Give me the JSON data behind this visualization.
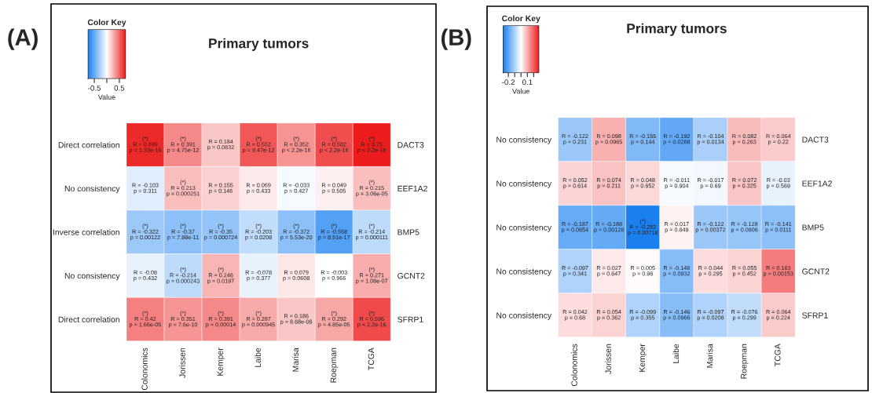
{
  "chart_data": [
    {
      "type": "heatmap",
      "title": "Primary tumors",
      "clabel": "Value",
      "annotations": [
        "(A)",
        "Color Key"
      ],
      "categories": [
        "Colonomics",
        "Jorissen",
        "Kemper",
        "Laibe",
        "Marisa",
        "Roepman",
        "TCGA"
      ],
      "y_categories": [
        "Direct correlation",
        "No consistency",
        "Inverse correlation",
        "No consistency",
        "Direct correlation"
      ],
      "y2_categories": [
        "DACT3",
        "EEF1A2",
        "BMP5",
        "GCNT2",
        "SFRP1"
      ],
      "cells": [
        [
          0.699,
          0.391,
          0.184,
          0.552,
          0.352,
          0.582,
          0.75
        ],
        [
          -0.103,
          0.213,
          0.155,
          0.069,
          -0.033,
          0.049,
          0.215
        ],
        [
          -0.322,
          -0.37,
          -0.35,
          -0.203,
          -0.372,
          -0.558,
          -0.214
        ],
        [
          -0.08,
          -0.214,
          0.246,
          -0.078,
          0.079,
          -0.003,
          0.271
        ],
        [
          0.42,
          0.351,
          0.391,
          0.287,
          0.186,
          0.292,
          0.596
        ]
      ],
      "cell_labels": [
        [
          "(*)\nR = 0.699\np = 1.33e-15",
          "(*)\nR = 0.391\np = 4.75e-12",
          "R = 0.184\np = 0.0832",
          "(*)\nR = 0.552\np = 9.47e-12",
          "(*)\nR = 0.352\np < 2.2e-16",
          "(*)\nR = 0.582\np < 2.2e-16",
          "(*)\nR = 0.75\np < 2.2e-16"
        ],
        [
          "R = -0.103\np = 0.311",
          "(*)\nR = 0.213\np = 0.000251",
          "R = 0.155\np = 0.146",
          "R = 0.069\np = 0.433",
          "R = -0.033\np = 0.427",
          "R = 0.049\np = 0.505",
          "(*)\nR = 0.215\np = 3.06e-05"
        ],
        [
          "(*)\nR = -0.322\np = 0.00122",
          "(*)\nR = -0.37\np = 7.88e-11",
          "(*)\nR = -0.35\np = 0.000724",
          "(*)\nR = -0.203\np = 0.0208",
          "(*)\nR = -0.372\np = 5.53e-20",
          "(*)\nR = -0.558\np = 8.51e-17",
          "(*)\nR = -0.214\np = 0.000111"
        ],
        [
          "R = -0.08\np = 0.432",
          "(*)\nR = -0.214\np = 0.000243",
          "(*)\nR = 0.246\np = 0.0197",
          "R = -0.078\np = 0.377",
          "R = 0.079\np = 0.0608",
          "R = -0.003\np = 0.966",
          "(*)\nR = 0.271\np = 1.08e-07"
        ],
        [
          "(*)\nR = 0.42\np = 1.66e-05",
          "(*)\nR = 0.351\np = 7.6e-10",
          "(*)\nR = 0.391\np = 0.00014",
          "(*)\nR = 0.287\np = 0.000945",
          "R = 0.186\np = 8.68e-06",
          "(*)\nR = 0.292\np = 4.85e-05",
          "(*)\nR = 0.596\np < 2.2e-16"
        ]
      ],
      "clim": [
        -0.75,
        0.75
      ],
      "cticks": [
        -0.5,
        {
          "value": 0,
          "label": null
        },
        0.5
      ]
    },
    {
      "type": "heatmap",
      "title": "Primary tumors",
      "clabel": "Value",
      "annotations": [
        "(B)",
        "Color Key"
      ],
      "categories": [
        "Colonomics",
        "Jorissen",
        "Kemper",
        "Laibe",
        "Marisa",
        "Roepman",
        "TCGA"
      ],
      "y_categories": [
        "No consistency",
        "No consistency",
        "No consistency",
        "No consistency",
        "No consistency"
      ],
      "y2_categories": [
        "DACT3",
        "EEF1A2",
        "BMP5",
        "GCNT2",
        "SFRP1"
      ],
      "cells": [
        [
          -0.122,
          0.098,
          -0.155,
          -0.192,
          -0.104,
          0.082,
          0.064
        ],
        [
          0.052,
          0.074,
          0.048,
          -0.011,
          -0.017,
          0.072,
          -0.03
        ],
        [
          -0.187,
          -0.188,
          -0.282,
          0.017,
          -0.122,
          -0.128,
          -0.141
        ],
        [
          -0.097,
          0.027,
          0.005,
          -0.148,
          0.044,
          0.055,
          0.163
        ],
        [
          0.042,
          0.054,
          -0.099,
          -0.146,
          -0.097,
          -0.076,
          0.064
        ]
      ],
      "cell_labels": [
        [
          "R = -0.122\np = 0.231",
          "R = 0.098\np = 0.0965",
          "R = -0.155\np = 0.144",
          "R = -0.192\np = 0.0288",
          "R = -0.104\np = 0.0134",
          "R = 0.082\np = 0.263",
          "R = 0.064\np = 0.22"
        ],
        [
          "R = 0.052\np = 0.614",
          "R = 0.074\np = 0.211",
          "R = 0.048\np = 0.652",
          "R = -0.011\np = 0.904",
          "R = -0.017\np = 0.69",
          "R = 0.072\np = 0.325",
          "R = -0.03\np = 0.569"
        ],
        [
          "R = -0.187\np = 0.0654",
          "R = -0.188\np = 0.00128",
          "(*)\nR = -0.282\np = 0.00718",
          "R = 0.017\np = 0.849",
          "R = -0.122\np = 0.00372",
          "R = -0.128\np = 0.0806",
          "R = -0.141\np = 0.0111"
        ],
        [
          "R = -0.097\np = 0.341",
          "R = 0.027\np = 0.647",
          "R = 0.005\np = 0.96",
          "R = -0.148\np = 0.0932",
          "R = 0.044\np = 0.295",
          "R = 0.055\np = 0.452",
          "R = 0.163\np = 0.00153"
        ],
        [
          "R = 0.042\np = 0.68",
          "R = 0.054\np = 0.362",
          "R = -0.099\np = 0.355",
          "R = -0.146\np = 0.0966",
          "R = -0.097\np = 0.0208",
          "R = -0.076\np = 0.299",
          "R = 0.064\np = 0.224"
        ]
      ],
      "clim": [
        -0.282,
        0.282
      ],
      "cticks": [
        -0.2,
        {
          "value": -0.1,
          "label": null
        },
        {
          "value": 0,
          "label": null
        },
        0.1,
        {
          "value": 0.2,
          "label": null
        }
      ]
    }
  ]
}
